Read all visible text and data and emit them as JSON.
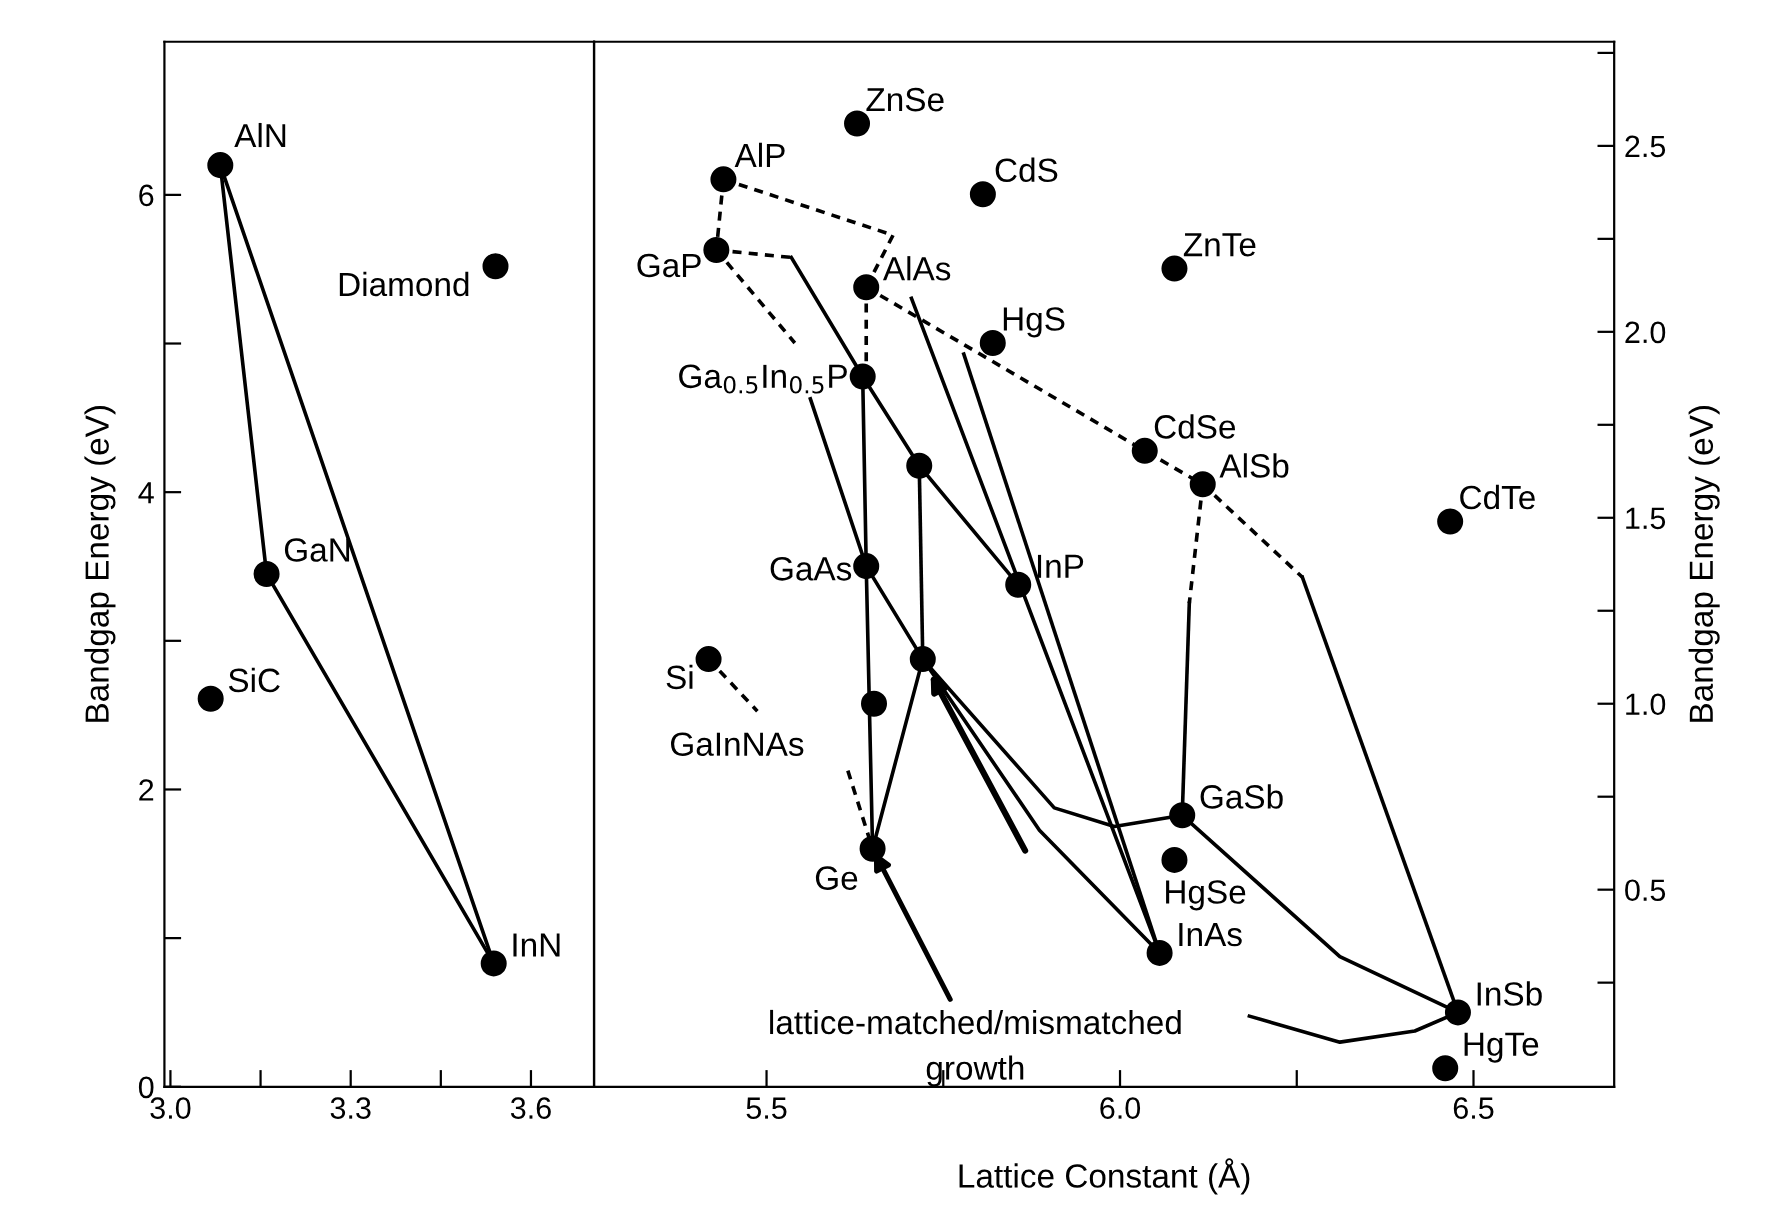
{
  "chart_data": [
    {
      "type": "scatter",
      "ylabel": "Bandgap Energy (eV)",
      "xlim": [
        2.99,
        3.705
      ],
      "ylim": [
        0,
        7.03
      ],
      "xticks": [
        {
          "value": 3.0,
          "label": "3.0"
        },
        {
          "value": 3.15,
          "label": null
        },
        {
          "value": 3.3,
          "label": "3.3"
        },
        {
          "value": 3.45,
          "label": null
        },
        {
          "value": 3.6,
          "label": "3.6"
        }
      ],
      "yticks": [
        0,
        {
          "value": 1,
          "label": null
        },
        2,
        {
          "value": 3,
          "label": null
        },
        4,
        {
          "value": 5,
          "label": null
        },
        6
      ],
      "grid": false,
      "legend": false,
      "series": [
        {
          "type": "line",
          "color": "#000000",
          "line_style": "solid",
          "x": [
            3.083,
            3.16,
            3.538
          ],
          "values": [
            6.2,
            3.45,
            0.83
          ]
        },
        {
          "type": "line",
          "color": "#000000",
          "line_style": "solid",
          "x": [
            3.083,
            3.538
          ],
          "values": [
            6.2,
            0.83
          ]
        },
        {
          "marker": "circle",
          "color": "#000000",
          "x": [
            3.083,
            3.541,
            3.16,
            3.067,
            3.538
          ],
          "values": [
            6.2,
            5.52,
            3.45,
            2.61,
            0.83
          ]
        }
      ],
      "annotations": [
        {
          "text": "AlN",
          "x": 3.083,
          "y": 6.2
        },
        {
          "text": "Diamond",
          "x": 3.541,
          "y": 5.52
        },
        {
          "text": "GaN",
          "x": 3.16,
          "y": 3.45
        },
        {
          "text": "SiC",
          "x": 3.067,
          "y": 2.61
        },
        {
          "text": "InN",
          "x": 3.538,
          "y": 0.83
        }
      ]
    },
    {
      "type": "scatter",
      "xlabel": "Lattice Constant (Å)",
      "ylabel": "Bandgap Energy (eV)",
      "xlim": [
        5.256,
        6.699
      ],
      "ylim": [
        -0.03,
        2.78
      ],
      "xticks": [
        {
          "value": 5.5,
          "label": "5.5"
        },
        {
          "value": 5.75,
          "label": null
        },
        {
          "value": 6.0,
          "label": "6.0"
        },
        {
          "value": 6.25,
          "label": null
        },
        {
          "value": 6.5,
          "label": "6.5"
        }
      ],
      "yticks": [
        {
          "value": 0.25,
          "label": null
        },
        {
          "value": 0.5,
          "label": "0.5"
        },
        {
          "value": 0.75,
          "label": null
        },
        {
          "value": 1.0,
          "label": "1.0"
        },
        {
          "value": 1.25,
          "label": null
        },
        {
          "value": 1.5,
          "label": "1.5"
        },
        {
          "value": 1.75,
          "label": null
        },
        {
          "value": 2.0,
          "label": "2.0"
        },
        {
          "value": 2.25,
          "label": null
        },
        {
          "value": 2.5,
          "label": "2.5"
        },
        {
          "value": 2.75,
          "label": null
        }
      ],
      "grid": false,
      "legend": false,
      "series": [
        {
          "type": "line",
          "color": "#000000",
          "line_style": "dashed",
          "x": [
            5.439,
            5.679,
            5.641
          ],
          "values": [
            2.41,
            2.26,
            2.12
          ]
        },
        {
          "type": "line",
          "color": "#000000",
          "line_style": "dashed",
          "x": [
            5.439,
            5.429
          ],
          "values": [
            2.41,
            2.22
          ]
        },
        {
          "type": "line",
          "color": "#000000",
          "line_style": "dashed",
          "x": [
            5.429,
            5.535
          ],
          "values": [
            2.22,
            2.2
          ]
        },
        {
          "type": "line",
          "color": "#000000",
          "line_style": "solid",
          "x": [
            5.535,
            5.636,
            5.716,
            5.856
          ],
          "values": [
            2.2,
            1.88,
            1.64,
            1.32
          ]
        },
        {
          "type": "line",
          "color": "#000000",
          "line_style": "dashed",
          "x": [
            5.429,
            5.54
          ],
          "values": [
            2.22,
            1.97
          ]
        },
        {
          "type": "line",
          "color": "#000000",
          "line_style": "solid",
          "x": [
            5.562,
            5.641,
            5.721
          ],
          "values": [
            1.82,
            1.37,
            1.12
          ]
        },
        {
          "type": "line",
          "color": "#000000",
          "line_style": "dashed",
          "x": [
            5.641,
            5.641
          ],
          "values": [
            2.12,
            1.88
          ]
        },
        {
          "type": "line",
          "color": "#000000",
          "line_style": "solid",
          "x": [
            5.636,
            5.641,
            5.65
          ],
          "values": [
            1.88,
            1.37,
            0.61
          ]
        },
        {
          "type": "line",
          "color": "#000000",
          "line_style": "dashed",
          "x": [
            5.641,
            6.035,
            6.117,
            6.258
          ],
          "values": [
            2.12,
            1.68,
            1.59,
            1.34
          ]
        },
        {
          "type": "line",
          "color": "#000000",
          "line_style": "solid",
          "x": [
            6.258,
            6.478
          ],
          "values": [
            1.34,
            0.17
          ]
        },
        {
          "type": "line",
          "color": "#000000",
          "line_style": "dashed",
          "x": [
            6.117,
            6.098
          ],
          "values": [
            1.59,
            1.27
          ]
        },
        {
          "type": "line",
          "color": "#000000",
          "line_style": "solid",
          "x": [
            6.098,
            6.088
          ],
          "values": [
            1.27,
            0.7
          ]
        },
        {
          "type": "line",
          "color": "#000000",
          "line_style": "solid",
          "x": [
            5.705,
            6.056
          ],
          "values": [
            2.09,
            0.33
          ]
        },
        {
          "type": "line",
          "color": "#000000",
          "line_style": "solid",
          "x": [
            5.779,
            6.056
          ],
          "values": [
            1.94,
            0.33
          ]
        },
        {
          "type": "line",
          "color": "#000000",
          "line_style": "solid",
          "x": [
            5.716,
            5.721
          ],
          "values": [
            1.64,
            1.12
          ]
        },
        {
          "type": "line",
          "color": "#000000",
          "line_style": "solid",
          "x": [
            5.721,
            5.907,
            5.992,
            6.088
          ],
          "values": [
            1.12,
            0.72,
            0.67,
            0.7
          ]
        },
        {
          "type": "line",
          "color": "#000000",
          "line_style": "solid",
          "x": [
            5.721,
            5.886,
            6.056
          ],
          "values": [
            1.12,
            0.66,
            0.33
          ]
        },
        {
          "type": "line",
          "color": "#000000",
          "line_style": "solid",
          "x": [
            5.65,
            5.721
          ],
          "values": [
            0.61,
            1.12
          ]
        },
        {
          "type": "line",
          "color": "#000000",
          "line_style": "solid",
          "x": [
            6.088,
            6.311,
            6.478
          ],
          "values": [
            0.7,
            0.32,
            0.17
          ]
        },
        {
          "type": "line",
          "color": "#000000",
          "line_style": "solid",
          "x": [
            6.183,
            6.311,
            6.417,
            6.478
          ],
          "values": [
            0.16,
            0.09,
            0.12,
            0.17
          ]
        },
        {
          "type": "line",
          "color": "#000000",
          "line_style": "dashed",
          "x": [
            5.418,
            5.487
          ],
          "values": [
            1.12,
            0.98
          ]
        },
        {
          "type": "line",
          "color": "#000000",
          "line_style": "dashed",
          "x": [
            5.615,
            5.645
          ],
          "values": [
            0.82,
            0.64
          ]
        },
        {
          "type": "scatter",
          "marker": "circle",
          "color": "#000000",
          "x": [
            5.628,
            5.439,
            5.806,
            5.429,
            5.641,
            6.077,
            5.82,
            5.636,
            5.716,
            6.035,
            6.117,
            6.467,
            5.641,
            5.856,
            5.721,
            5.418,
            5.652,
            6.088,
            6.077,
            5.65,
            6.056,
            6.478,
            6.46
          ],
          "values": [
            2.56,
            2.41,
            2.37,
            2.22,
            2.12,
            2.17,
            1.97,
            1.88,
            1.64,
            1.68,
            1.59,
            1.49,
            1.37,
            1.32,
            1.12,
            1.12,
            1.0,
            0.7,
            0.58,
            0.61,
            0.33,
            0.17,
            0.02
          ]
        }
      ],
      "annotations": [
        {
          "text": "ZnSe",
          "x": 5.628,
          "y": 2.56
        },
        {
          "text": "AlP",
          "x": 5.439,
          "y": 2.41
        },
        {
          "text": "CdS",
          "x": 5.806,
          "y": 2.37
        },
        {
          "text": "GaP",
          "x": 5.429,
          "y": 2.22
        },
        {
          "text": "AlAs",
          "x": 5.641,
          "y": 2.12
        },
        {
          "text": "ZnTe",
          "x": 6.077,
          "y": 2.17
        },
        {
          "text": "HgS",
          "x": 5.82,
          "y": 1.97
        },
        {
          "text": "Ga$_{0.5}$In$_{0.5}$P",
          "x": 5.636,
          "y": 1.88
        },
        {
          "text": "CdSe",
          "x": 6.035,
          "y": 1.68
        },
        {
          "text": "AlSb",
          "x": 6.117,
          "y": 1.59
        },
        {
          "text": "CdTe",
          "x": 6.467,
          "y": 1.49
        },
        {
          "text": "GaAs",
          "x": 5.641,
          "y": 1.37
        },
        {
          "text": "InP",
          "x": 5.856,
          "y": 1.32
        },
        {
          "text": "Si",
          "x": 5.418,
          "y": 1.12
        },
        {
          "text": "GaInNAs",
          "x": 5.652,
          "y": 1.0
        },
        {
          "text": "GaSb",
          "x": 6.088,
          "y": 0.7
        },
        {
          "text": "HgSe",
          "x": 6.077,
          "y": 0.58
        },
        {
          "text": "Ge",
          "x": 5.65,
          "y": 0.61
        },
        {
          "text": "InAs",
          "x": 6.056,
          "y": 0.33
        },
        {
          "text": "InSb",
          "x": 6.478,
          "y": 0.17
        },
        {
          "text": "HgTe",
          "x": 6.46,
          "y": 0.02
        },
        {
          "text": "lattice-matched/mismatched\ngrowth",
          "x": 5.65,
          "y": 0.61
        }
      ]
    }
  ]
}
